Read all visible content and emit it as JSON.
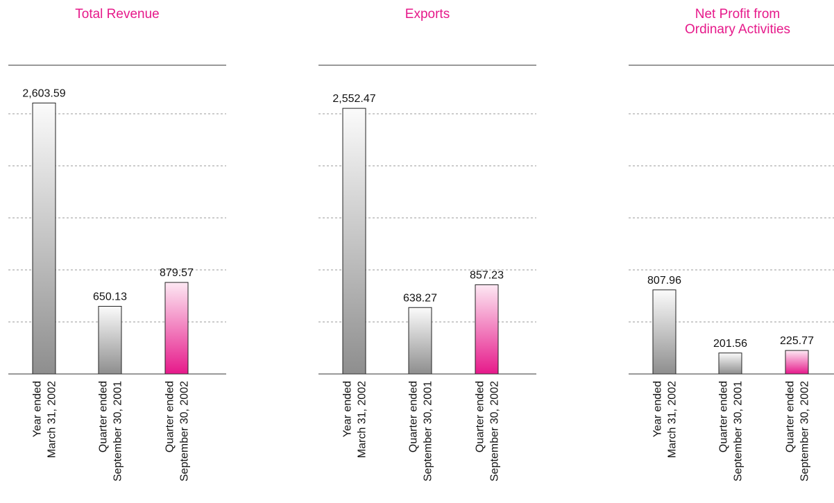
{
  "palette": {
    "grey_top": "#fbfbfb",
    "grey_bottom": "#8e8e8e",
    "pink_top": "#fde8f3",
    "pink_bottom": "#e6198a",
    "title": "#e6198a"
  },
  "chart_data": [
    {
      "type": "bar",
      "title": "Total Revenue",
      "categories": [
        [
          "Year ended",
          "March 31, 2002"
        ],
        [
          "Quarter ended",
          "September 30, 2001"
        ],
        [
          "Quarter ended",
          "September 30, 2002"
        ]
      ],
      "values": [
        2603.59,
        650.13,
        879.57
      ],
      "value_labels": [
        "2,603.59",
        "650.13",
        "879.57"
      ],
      "highlight": [
        false,
        false,
        true
      ],
      "ylim": [
        0,
        3000
      ],
      "grid": true
    },
    {
      "type": "bar",
      "title": "Exports",
      "categories": [
        [
          "Year ended",
          "March 31, 2002"
        ],
        [
          "Quarter ended",
          "September 30, 2001"
        ],
        [
          "Quarter ended",
          "September 30, 2002"
        ]
      ],
      "values": [
        2552.47,
        638.27,
        857.23
      ],
      "value_labels": [
        "2,552.47",
        "638.27",
        "857.23"
      ],
      "highlight": [
        false,
        false,
        true
      ],
      "ylim": [
        0,
        3000
      ],
      "grid": true
    },
    {
      "type": "bar",
      "title": "Net Profit from\nOrdinary Activities",
      "categories": [
        [
          "Year ended",
          "March 31, 2002"
        ],
        [
          "Quarter ended",
          "September 30, 2001"
        ],
        [
          "Quarter ended",
          "September 30, 2002"
        ]
      ],
      "values": [
        807.96,
        201.56,
        225.77
      ],
      "value_labels": [
        "807.96",
        "201.56",
        "225.77"
      ],
      "highlight": [
        false,
        false,
        true
      ],
      "ylim": [
        0,
        3000
      ],
      "grid": true
    }
  ]
}
